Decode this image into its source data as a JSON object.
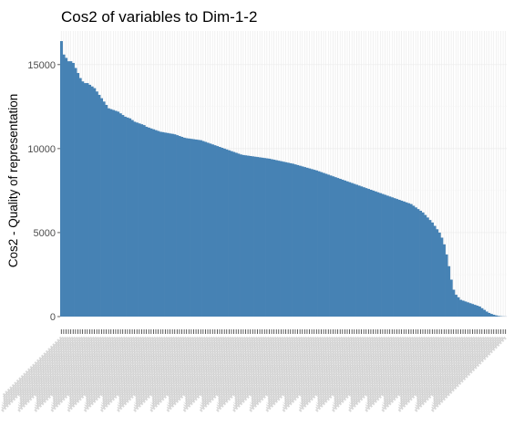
{
  "chart_data": {
    "type": "bar",
    "title": "Cos2 of variables to Dim-1-2",
    "xlabel": "",
    "ylabel": "Cos2 - Quality of representation",
    "ylim": [
      0,
      17000
    ],
    "yticks": [
      0,
      5000,
      10000,
      15000
    ],
    "grid": true,
    "legend": "none",
    "colors": {
      "bar": "#4682b4",
      "grid": "#ebebeb",
      "text": "#4d4d4d"
    },
    "n_categories": 189,
    "x_tick_labels_legible": false,
    "values": [
      16400,
      15600,
      15400,
      15200,
      15200,
      15100,
      14800,
      14500,
      14200,
      14000,
      13900,
      13900,
      13800,
      13700,
      13600,
      13400,
      13200,
      13000,
      12800,
      12600,
      12400,
      12350,
      12300,
      12250,
      12200,
      12100,
      12000,
      11900,
      11850,
      11800,
      11700,
      11600,
      11550,
      11500,
      11450,
      11400,
      11300,
      11250,
      11200,
      11150,
      11100,
      11050,
      11000,
      10980,
      10950,
      10930,
      10900,
      10880,
      10850,
      10800,
      10750,
      10700,
      10650,
      10620,
      10600,
      10580,
      10560,
      10540,
      10520,
      10500,
      10450,
      10400,
      10350,
      10300,
      10250,
      10200,
      10150,
      10100,
      10050,
      10000,
      9950,
      9900,
      9850,
      9800,
      9750,
      9700,
      9650,
      9620,
      9600,
      9580,
      9560,
      9540,
      9520,
      9500,
      9480,
      9460,
      9440,
      9420,
      9400,
      9370,
      9340,
      9310,
      9280,
      9250,
      9220,
      9190,
      9160,
      9130,
      9100,
      9060,
      9020,
      8980,
      8940,
      8900,
      8860,
      8820,
      8780,
      8740,
      8700,
      8650,
      8600,
      8550,
      8500,
      8450,
      8400,
      8350,
      8300,
      8250,
      8200,
      8150,
      8100,
      8050,
      8000,
      7950,
      7900,
      7850,
      7800,
      7750,
      7700,
      7650,
      7600,
      7550,
      7500,
      7450,
      7400,
      7350,
      7300,
      7250,
      7200,
      7150,
      7100,
      7050,
      7000,
      6950,
      6900,
      6850,
      6800,
      6750,
      6700,
      6600,
      6500,
      6400,
      6300,
      6200,
      6050,
      5900,
      5750,
      5600,
      5400,
      5200,
      5000,
      4700,
      4300,
      3700,
      3000,
      2200,
      1600,
      1300,
      1150,
      1000,
      950,
      900,
      850,
      800,
      750,
      700,
      650,
      600,
      500,
      400,
      300,
      220,
      160,
      110,
      70,
      40,
      20,
      10,
      5
    ]
  }
}
